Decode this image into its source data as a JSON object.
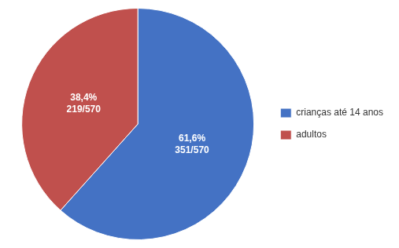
{
  "chart_data": {
    "type": "pie",
    "categories": [
      "crianças até 14 anos",
      "adultos"
    ],
    "values": [
      61.6,
      38.4
    ],
    "colors": [
      "#4472C4",
      "#C0504D"
    ],
    "annotations": [
      "61,6%\n351/570",
      "38,4%\n219/570"
    ],
    "legend": "right"
  }
}
